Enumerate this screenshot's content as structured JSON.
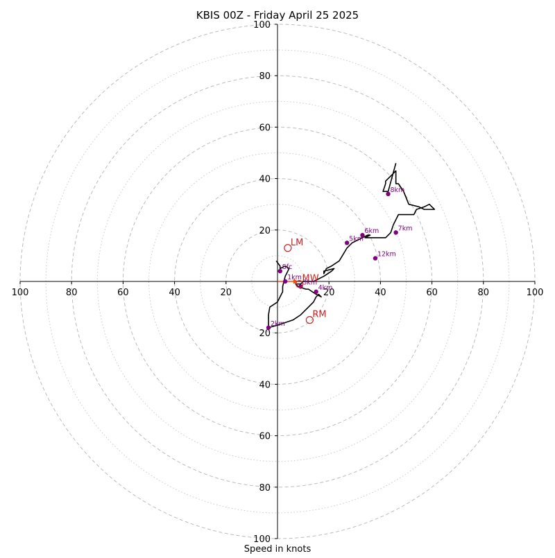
{
  "chart_data": {
    "type": "hodograph",
    "title": "KBIS 00Z - Friday April 25 2025",
    "xlabel": "Speed in knots",
    "ylabel": "",
    "xlim": [
      -100,
      100
    ],
    "ylim": [
      -100,
      100
    ],
    "x_tick_labels": [
      "100",
      "80",
      "60",
      "40",
      "20",
      "20",
      "40",
      "60",
      "80",
      "100"
    ],
    "y_tick_labels": [
      "100",
      "80",
      "60",
      "40",
      "20",
      "20",
      "40",
      "60",
      "80",
      "100"
    ],
    "x_ticks": [
      -100,
      -80,
      -60,
      -40,
      -20,
      20,
      40,
      60,
      80,
      100
    ],
    "y_ticks": [
      100,
      80,
      60,
      40,
      20,
      -20,
      -40,
      -60,
      -80,
      -100
    ],
    "major_rings": [
      20,
      40,
      60,
      80,
      100
    ],
    "minor_rings": [
      10,
      30,
      50,
      70,
      90
    ],
    "grid": true,
    "colors": {
      "trace": "#000000",
      "height_markers": "#800080",
      "storm_motion": "#cc2222",
      "shear_vector": "#ff4500",
      "rings": "#bbbbbb"
    },
    "hodograph_trace": {
      "u": [
        -0.5,
        1,
        1,
        3,
        4.5,
        3,
        2.5,
        2,
        2,
        1,
        0,
        -3,
        -3.5,
        -3.5,
        0,
        3,
        6,
        9,
        11,
        14,
        15,
        16,
        17,
        15,
        12,
        11,
        8,
        7,
        8,
        8.5,
        9,
        10,
        14,
        18,
        21,
        22,
        18,
        18,
        19,
        21,
        24,
        27,
        29,
        31,
        33,
        35,
        36,
        34,
        38,
        42,
        44,
        45,
        47,
        53,
        54,
        57,
        59,
        60,
        61,
        57,
        55,
        51,
        49,
        47,
        46,
        46,
        46,
        44,
        42,
        42,
        41,
        43,
        46
      ],
      "v": [
        8,
        6,
        5,
        6,
        5,
        2,
        0,
        -2,
        -4,
        -6,
        -8,
        -10,
        -13,
        -18,
        -17,
        -16,
        -15,
        -13,
        -11,
        -8,
        -6,
        -5,
        -6,
        -5,
        -3,
        -3,
        -2,
        -1,
        -1,
        -1,
        -1,
        0,
        0,
        2,
        4,
        5,
        4,
        3,
        5,
        6,
        8,
        13,
        15,
        16,
        17,
        18,
        18,
        17,
        17,
        17,
        19,
        22,
        26,
        26,
        28,
        29,
        30,
        29,
        28,
        28,
        29,
        30,
        35,
        38,
        38,
        40,
        43,
        41,
        39,
        38,
        35,
        35,
        46
      ]
    },
    "height_markers": [
      {
        "label": "Sfc",
        "u": 1,
        "v": 4
      },
      {
        "label": "1km",
        "u": 3,
        "v": 0
      },
      {
        "label": "2km",
        "u": -3.5,
        "v": -18
      },
      {
        "label": "3km",
        "u": 9,
        "v": -2
      },
      {
        "label": "4km",
        "u": 15,
        "v": -4
      },
      {
        "label": "5km",
        "u": 27,
        "v": 15
      },
      {
        "label": "6km",
        "u": 33,
        "v": 18
      },
      {
        "label": "7km",
        "u": 46,
        "v": 19
      },
      {
        "label": "8km",
        "u": 43,
        "v": 34
      },
      {
        "label": "12km",
        "u": 38,
        "v": 9
      }
    ],
    "storm_motion": [
      {
        "label": "LM",
        "u": 4,
        "v": 13
      },
      {
        "label": "MW",
        "u": 8.5,
        "v": -1
      },
      {
        "label": "RM",
        "u": 12.5,
        "v": -15
      }
    ],
    "shear_vector": {
      "from": [
        0,
        0
      ],
      "to": [
        7,
        0
      ]
    }
  }
}
